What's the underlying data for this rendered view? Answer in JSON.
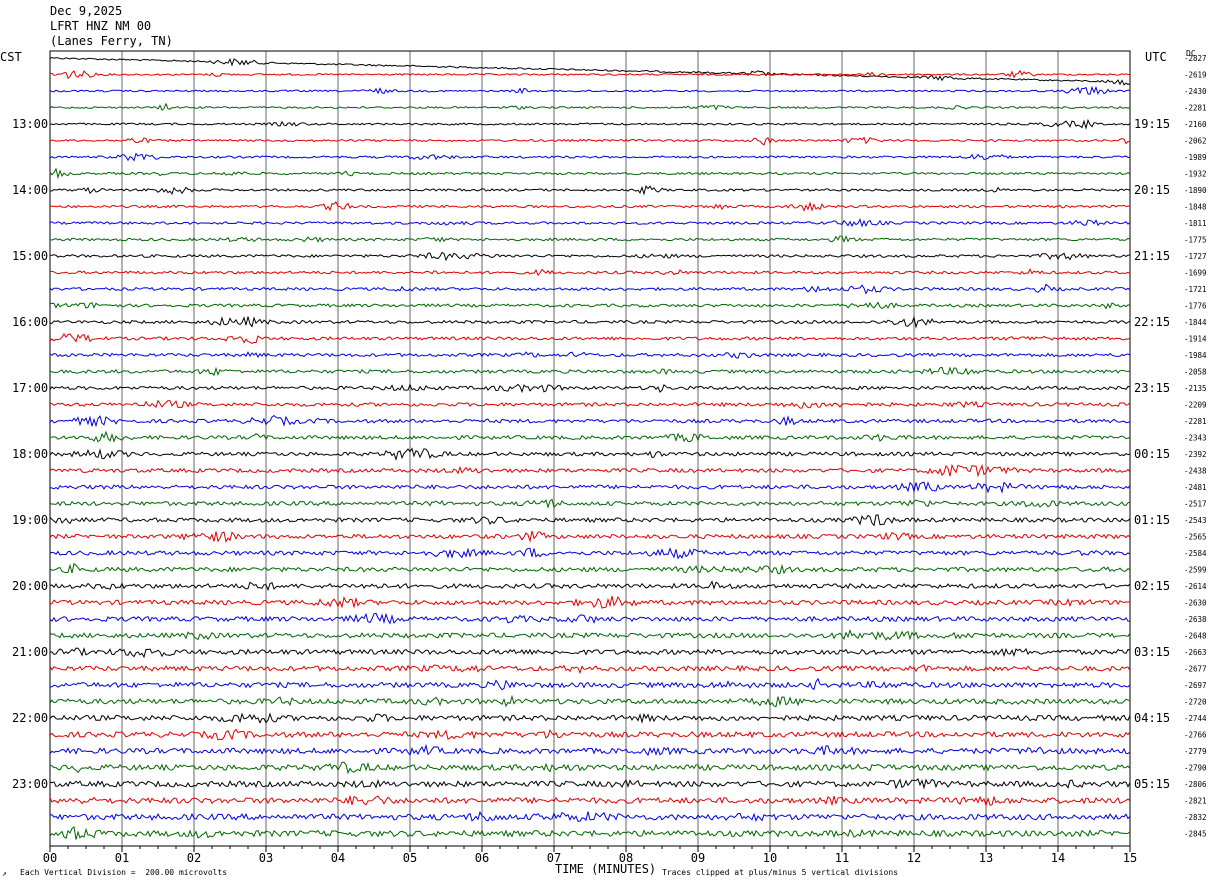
{
  "header": {
    "date": "Dec 9,2025",
    "station": "LFRT HNZ NM 00",
    "location": "(Lanes Ferry, TN)"
  },
  "left_tz": "CST",
  "right_tz": "UTC",
  "dc_label": "DC",
  "footer": {
    "scale_note": "Each Vertical Division =  200.00 microvolts",
    "clip_note": "Traces clipped at plus/minus 5 vertical divisions",
    "corner_mark": "↗"
  },
  "colors": {
    "black": "#000000",
    "red": "#dd0000",
    "blue": "#0000dd",
    "green": "#006600",
    "grid": "#000000"
  },
  "chart_data": {
    "type": "line",
    "title": "",
    "xlabel": "TIME (MINUTES)",
    "ylabel": "",
    "x_ticks": [
      "00",
      "01",
      "02",
      "03",
      "04",
      "05",
      "06",
      "07",
      "08",
      "09",
      "10",
      "11",
      "12",
      "13",
      "14",
      "15"
    ],
    "xlim": [
      0,
      15
    ],
    "left_hour_labels": [
      "13:00",
      "14:00",
      "15:00",
      "16:00",
      "17:00",
      "18:00",
      "19:00",
      "20:00",
      "21:00",
      "22:00",
      "23:00"
    ],
    "right_hour_labels": [
      "19:15",
      "20:15",
      "21:15",
      "22:15",
      "23:15",
      "00:15",
      "01:15",
      "02:15",
      "03:15",
      "04:15",
      "05:15"
    ],
    "trace_colors": [
      "black",
      "red",
      "blue",
      "green"
    ],
    "dc_offsets": [
      -2827,
      -2619,
      -2430,
      -2281,
      -2160,
      -2062,
      -1989,
      -1932,
      -1890,
      -1848,
      -1811,
      -1775,
      -1727,
      -1699,
      -1721,
      -1776,
      -1844,
      -1914,
      -1984,
      -2058,
      -2135,
      -2209,
      -2281,
      -2343,
      -2392,
      -2438,
      -2481,
      -2517,
      -2543,
      -2565,
      -2584,
      -2599,
      -2614,
      -2630,
      -2638,
      -2648,
      -2663,
      -2677,
      -2697,
      -2720,
      -2744,
      -2766,
      -2779,
      -2790,
      -2806,
      -2821,
      -2832,
      -2845
    ]
  }
}
